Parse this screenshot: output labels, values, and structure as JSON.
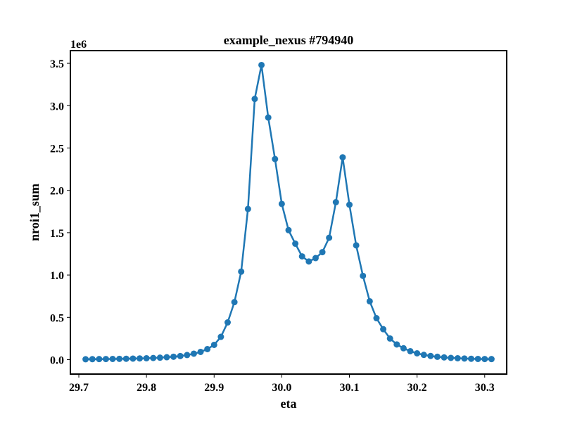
{
  "chart_data": {
    "type": "line",
    "title": "example_nexus #794940",
    "xlabel": "eta",
    "ylabel": "nroi1_sum",
    "y_offset_text": "1e6",
    "xlim": [
      29.6875,
      30.3325
    ],
    "ylim": [
      -0.17,
      3.65
    ],
    "xticks": [
      29.7,
      29.8,
      29.9,
      30.0,
      30.1,
      30.2,
      30.3
    ],
    "xtick_labels": [
      "29.7",
      "29.8",
      "29.9",
      "30.0",
      "30.1",
      "30.2",
      "30.3"
    ],
    "yticks": [
      0.0,
      0.5,
      1.0,
      1.5,
      2.0,
      2.5,
      3.0,
      3.5
    ],
    "ytick_labels": [
      "0.0",
      "0.5",
      "1.0",
      "1.5",
      "2.0",
      "2.5",
      "3.0",
      "3.5"
    ],
    "grid": false,
    "series": [
      {
        "color": "#1f77b4",
        "marker": "circle",
        "x": [
          29.71,
          29.72,
          29.73,
          29.74,
          29.75,
          29.76,
          29.77,
          29.78,
          29.79,
          29.8,
          29.81,
          29.82,
          29.83,
          29.84,
          29.85,
          29.86,
          29.87,
          29.88,
          29.89,
          29.9,
          29.91,
          29.92,
          29.93,
          29.94,
          29.95,
          29.96,
          29.97,
          29.98,
          29.99,
          30.0,
          30.01,
          30.02,
          30.03,
          30.04,
          30.05,
          30.06,
          30.07,
          30.08,
          30.09,
          30.1,
          30.11,
          30.12,
          30.13,
          30.14,
          30.15,
          30.16,
          30.17,
          30.18,
          30.19,
          30.2,
          30.21,
          30.22,
          30.23,
          30.24,
          30.25,
          30.26,
          30.27,
          30.28,
          30.29,
          30.3,
          30.31
        ],
        "y": [
          0.005,
          0.006,
          0.007,
          0.008,
          0.009,
          0.01,
          0.011,
          0.013,
          0.015,
          0.017,
          0.02,
          0.024,
          0.029,
          0.035,
          0.043,
          0.055,
          0.071,
          0.092,
          0.125,
          0.175,
          0.27,
          0.44,
          0.68,
          1.04,
          1.78,
          3.08,
          3.48,
          2.86,
          2.37,
          1.84,
          1.53,
          1.37,
          1.22,
          1.16,
          1.2,
          1.27,
          1.44,
          1.86,
          2.39,
          1.83,
          1.35,
          0.99,
          0.69,
          0.49,
          0.36,
          0.25,
          0.18,
          0.135,
          0.1,
          0.075,
          0.057,
          0.044,
          0.034,
          0.027,
          0.021,
          0.017,
          0.014,
          0.011,
          0.009,
          0.008,
          0.007
        ]
      }
    ]
  }
}
